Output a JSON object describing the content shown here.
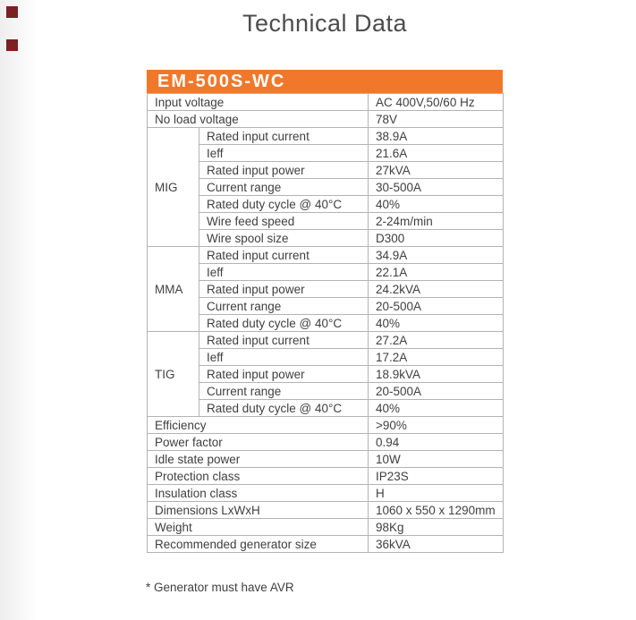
{
  "colors": {
    "accent_orange": "#f1782a",
    "header_text": "#ffffff",
    "title_text": "#4c4c4e",
    "body_text": "#3f3f41",
    "table_border": "#b3b3b6",
    "corner_marker": "#7a2123"
  },
  "page": {
    "title": "Technical Data",
    "footnote": "* Generator must have AVR"
  },
  "table": {
    "model": "EM-500S-WC",
    "sections": [
      {
        "group": null,
        "rows": [
          {
            "label": "Input voltage",
            "value": "AC 400V,50/60 Hz"
          },
          {
            "label": "No load voltage",
            "value": "78V"
          }
        ]
      },
      {
        "group": "MIG",
        "rows": [
          {
            "label": "Rated input current",
            "value": "38.9A"
          },
          {
            "label": "Ieff",
            "value": "21.6A"
          },
          {
            "label": "Rated input power",
            "value": "27kVA"
          },
          {
            "label": "Current range",
            "value": "30-500A"
          },
          {
            "label": "Rated duty cycle @ 40°C",
            "value": "40%"
          },
          {
            "label": "Wire feed speed",
            "value": "2-24m/min"
          },
          {
            "label": "Wire spool size",
            "value": "D300"
          }
        ]
      },
      {
        "group": "MMA",
        "rows": [
          {
            "label": "Rated input current",
            "value": "34.9A"
          },
          {
            "label": "Ieff",
            "value": "22.1A"
          },
          {
            "label": "Rated input power",
            "value": "24.2kVA"
          },
          {
            "label": "Current range",
            "value": "20-500A"
          },
          {
            "label": "Rated duty cycle @ 40°C",
            "value": "40%"
          }
        ]
      },
      {
        "group": "TIG",
        "rows": [
          {
            "label": "Rated input current",
            "value": "27.2A"
          },
          {
            "label": "Ieff",
            "value": "17.2A"
          },
          {
            "label": "Rated input power",
            "value": "18.9kVA"
          },
          {
            "label": "Current range",
            "value": "20-500A"
          },
          {
            "label": "Rated duty cycle @ 40°C",
            "value": "40%"
          }
        ]
      },
      {
        "group": null,
        "rows": [
          {
            "label": "Efficiency",
            "value": ">90%"
          },
          {
            "label": "Power factor",
            "value": "0.94"
          },
          {
            "label": "Idle state power",
            "value": "10W"
          },
          {
            "label": "Protection class",
            "value": "IP23S"
          },
          {
            "label": "Insulation class",
            "value": "H"
          },
          {
            "label": "Dimensions LxWxH",
            "value": "1060 x 550 x 1290mm"
          },
          {
            "label": "Weight",
            "value": "98Kg"
          },
          {
            "label": "Recommended generator size",
            "value": "36kVA"
          }
        ]
      }
    ]
  }
}
